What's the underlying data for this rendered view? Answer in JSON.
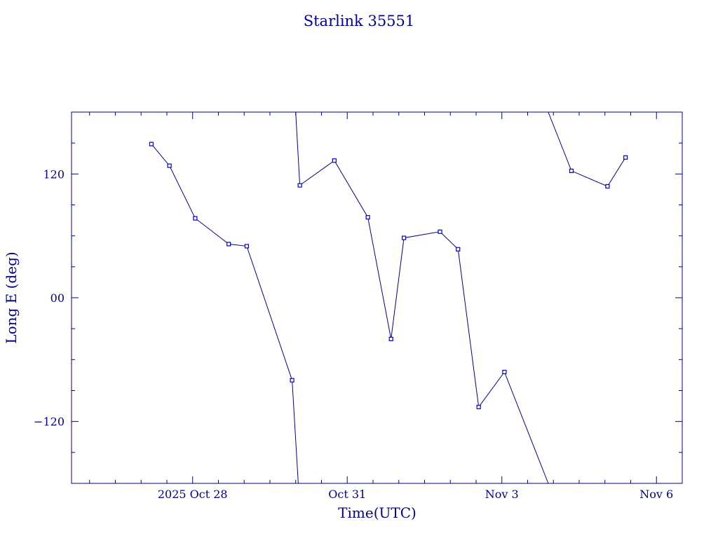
{
  "chart_data": {
    "type": "line",
    "title": "Starlink 35551",
    "xlabel": "Time(UTC)",
    "ylabel": "Long E (deg)",
    "xlim": [
      25.65,
      37.5
    ],
    "ylim": [
      -180,
      180
    ],
    "x_ticks": [
      {
        "x": 28,
        "label": "2025 Oct 28"
      },
      {
        "x": 31,
        "label": "Oct 31"
      },
      {
        "x": 34,
        "label": "Nov  3"
      },
      {
        "x": 37,
        "label": "Nov  6"
      }
    ],
    "y_ticks": [
      {
        "y": 120,
        "label": "120"
      },
      {
        "y": 0,
        "label": "00"
      },
      {
        "y": -120,
        "label": "−120"
      }
    ],
    "grid": false,
    "line_color": "#00008b",
    "segments": [
      [
        {
          "x": 27.2,
          "y": 149
        },
        {
          "x": 27.55,
          "y": 128
        },
        {
          "x": 28.05,
          "y": 77
        },
        {
          "x": 28.7,
          "y": 52
        },
        {
          "x": 29.05,
          "y": 50
        },
        {
          "x": 29.93,
          "y": -80
        },
        {
          "x": 30.05,
          "y": -180
        }
      ],
      [
        {
          "x": 30.0,
          "y": 180
        },
        {
          "x": 30.08,
          "y": 109
        },
        {
          "x": 30.75,
          "y": 133
        },
        {
          "x": 31.4,
          "y": 78
        },
        {
          "x": 31.85,
          "y": -40
        },
        {
          "x": 32.1,
          "y": 58
        },
        {
          "x": 32.8,
          "y": 64
        },
        {
          "x": 33.15,
          "y": 47
        },
        {
          "x": 33.55,
          "y": -106
        },
        {
          "x": 34.05,
          "y": -72
        },
        {
          "x": 34.9,
          "y": -180
        }
      ],
      [
        {
          "x": 34.9,
          "y": 180
        },
        {
          "x": 35.35,
          "y": 123
        },
        {
          "x": 36.05,
          "y": 108
        },
        {
          "x": 36.4,
          "y": 136
        }
      ]
    ],
    "marked_points": [
      {
        "x": 27.2,
        "y": 149
      },
      {
        "x": 27.55,
        "y": 128
      },
      {
        "x": 28.05,
        "y": 77
      },
      {
        "x": 28.7,
        "y": 52
      },
      {
        "x": 29.05,
        "y": 50
      },
      {
        "x": 29.93,
        "y": -80
      },
      {
        "x": 30.08,
        "y": 109
      },
      {
        "x": 30.75,
        "y": 133
      },
      {
        "x": 31.4,
        "y": 78
      },
      {
        "x": 31.85,
        "y": -40
      },
      {
        "x": 32.1,
        "y": 58
      },
      {
        "x": 32.8,
        "y": 64
      },
      {
        "x": 33.15,
        "y": 47
      },
      {
        "x": 33.55,
        "y": -106
      },
      {
        "x": 34.05,
        "y": -72
      },
      {
        "x": 35.35,
        "y": 123
      },
      {
        "x": 36.05,
        "y": 108
      },
      {
        "x": 36.4,
        "y": 136
      }
    ]
  }
}
